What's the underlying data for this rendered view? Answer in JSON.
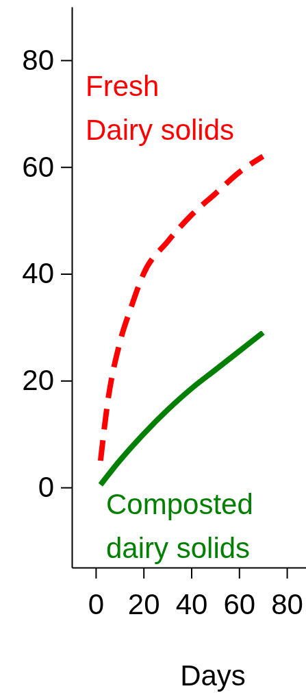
{
  "chart_data": {
    "type": "line",
    "xlabel": "Days",
    "xlim": [
      -10,
      88
    ],
    "xticks": [
      0,
      20,
      40,
      60,
      80
    ],
    "ylim": [
      -15,
      90
    ],
    "yticks": [
      0,
      20,
      40,
      60,
      80
    ],
    "grid": false,
    "marker": "none",
    "series": [
      {
        "name": "Fresh\nDairy solids",
        "color": "#ff0000",
        "line_style": "dashed",
        "x": [
          2,
          5,
          10,
          15,
          20,
          30,
          40,
          50,
          60,
          70
        ],
        "values": [
          5,
          16,
          27,
          34,
          40,
          46,
          51,
          55,
          59,
          62
        ]
      },
      {
        "name": "Composted\ndairy solids",
        "color": "#007f00",
        "line_style": "solid",
        "x": [
          2,
          10,
          20,
          30,
          40,
          50,
          60,
          70
        ],
        "values": [
          0.5,
          5,
          10,
          14.5,
          18.5,
          22,
          25.5,
          29
        ]
      }
    ]
  }
}
